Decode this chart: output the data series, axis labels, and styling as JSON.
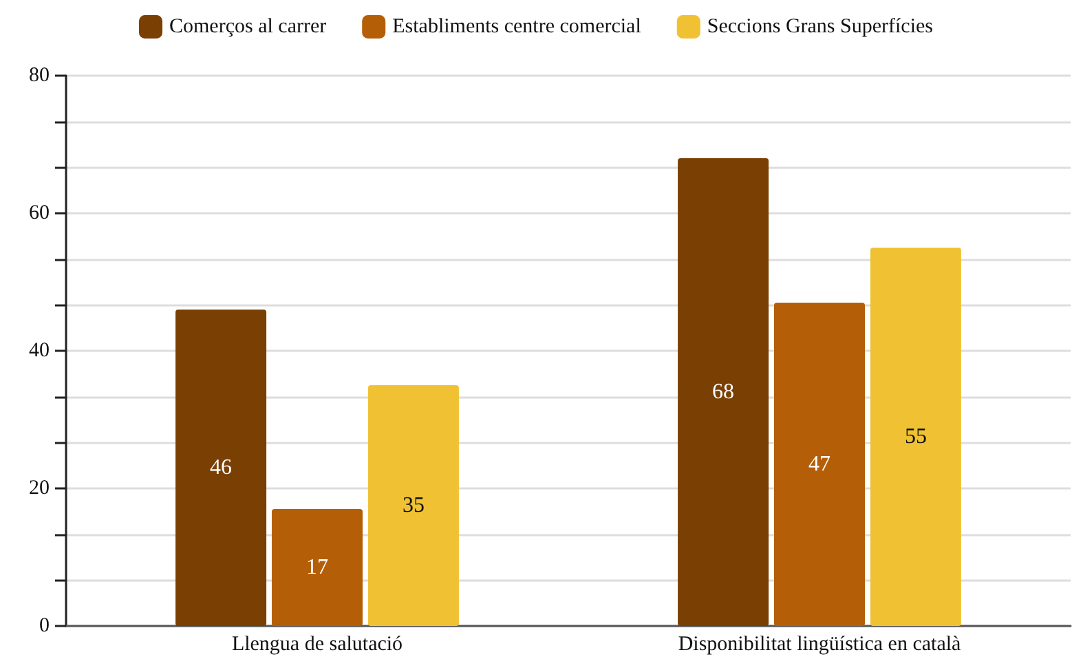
{
  "chart_data": {
    "type": "bar",
    "categories": [
      "Llengua de salutació",
      "Disponibilitat lingüística en català"
    ],
    "series": [
      {
        "name": "Comerços al carrer",
        "color": "#7a3f03",
        "values": [
          46,
          68
        ]
      },
      {
        "name": "Establiments centre comercial",
        "color": "#b55e08",
        "values": [
          17,
          47
        ]
      },
      {
        "name": "Seccions Grans Superfícies",
        "color": "#f0c233",
        "values": [
          35,
          55
        ]
      }
    ],
    "ylim": [
      0,
      80
    ],
    "yticks": [
      0,
      {
        "value": 6.67,
        "label": null
      },
      {
        "value": 13.33,
        "label": null
      },
      20,
      {
        "value": 26.67,
        "label": null
      },
      {
        "value": 33.33,
        "label": null
      },
      40,
      {
        "value": 46.67,
        "label": null
      },
      {
        "value": 53.33,
        "label": null
      },
      60,
      {
        "value": 66.67,
        "label": null
      },
      {
        "value": 73.33,
        "label": null
      },
      80
    ],
    "grid": "y",
    "legend": "top",
    "data_labels": true
  }
}
